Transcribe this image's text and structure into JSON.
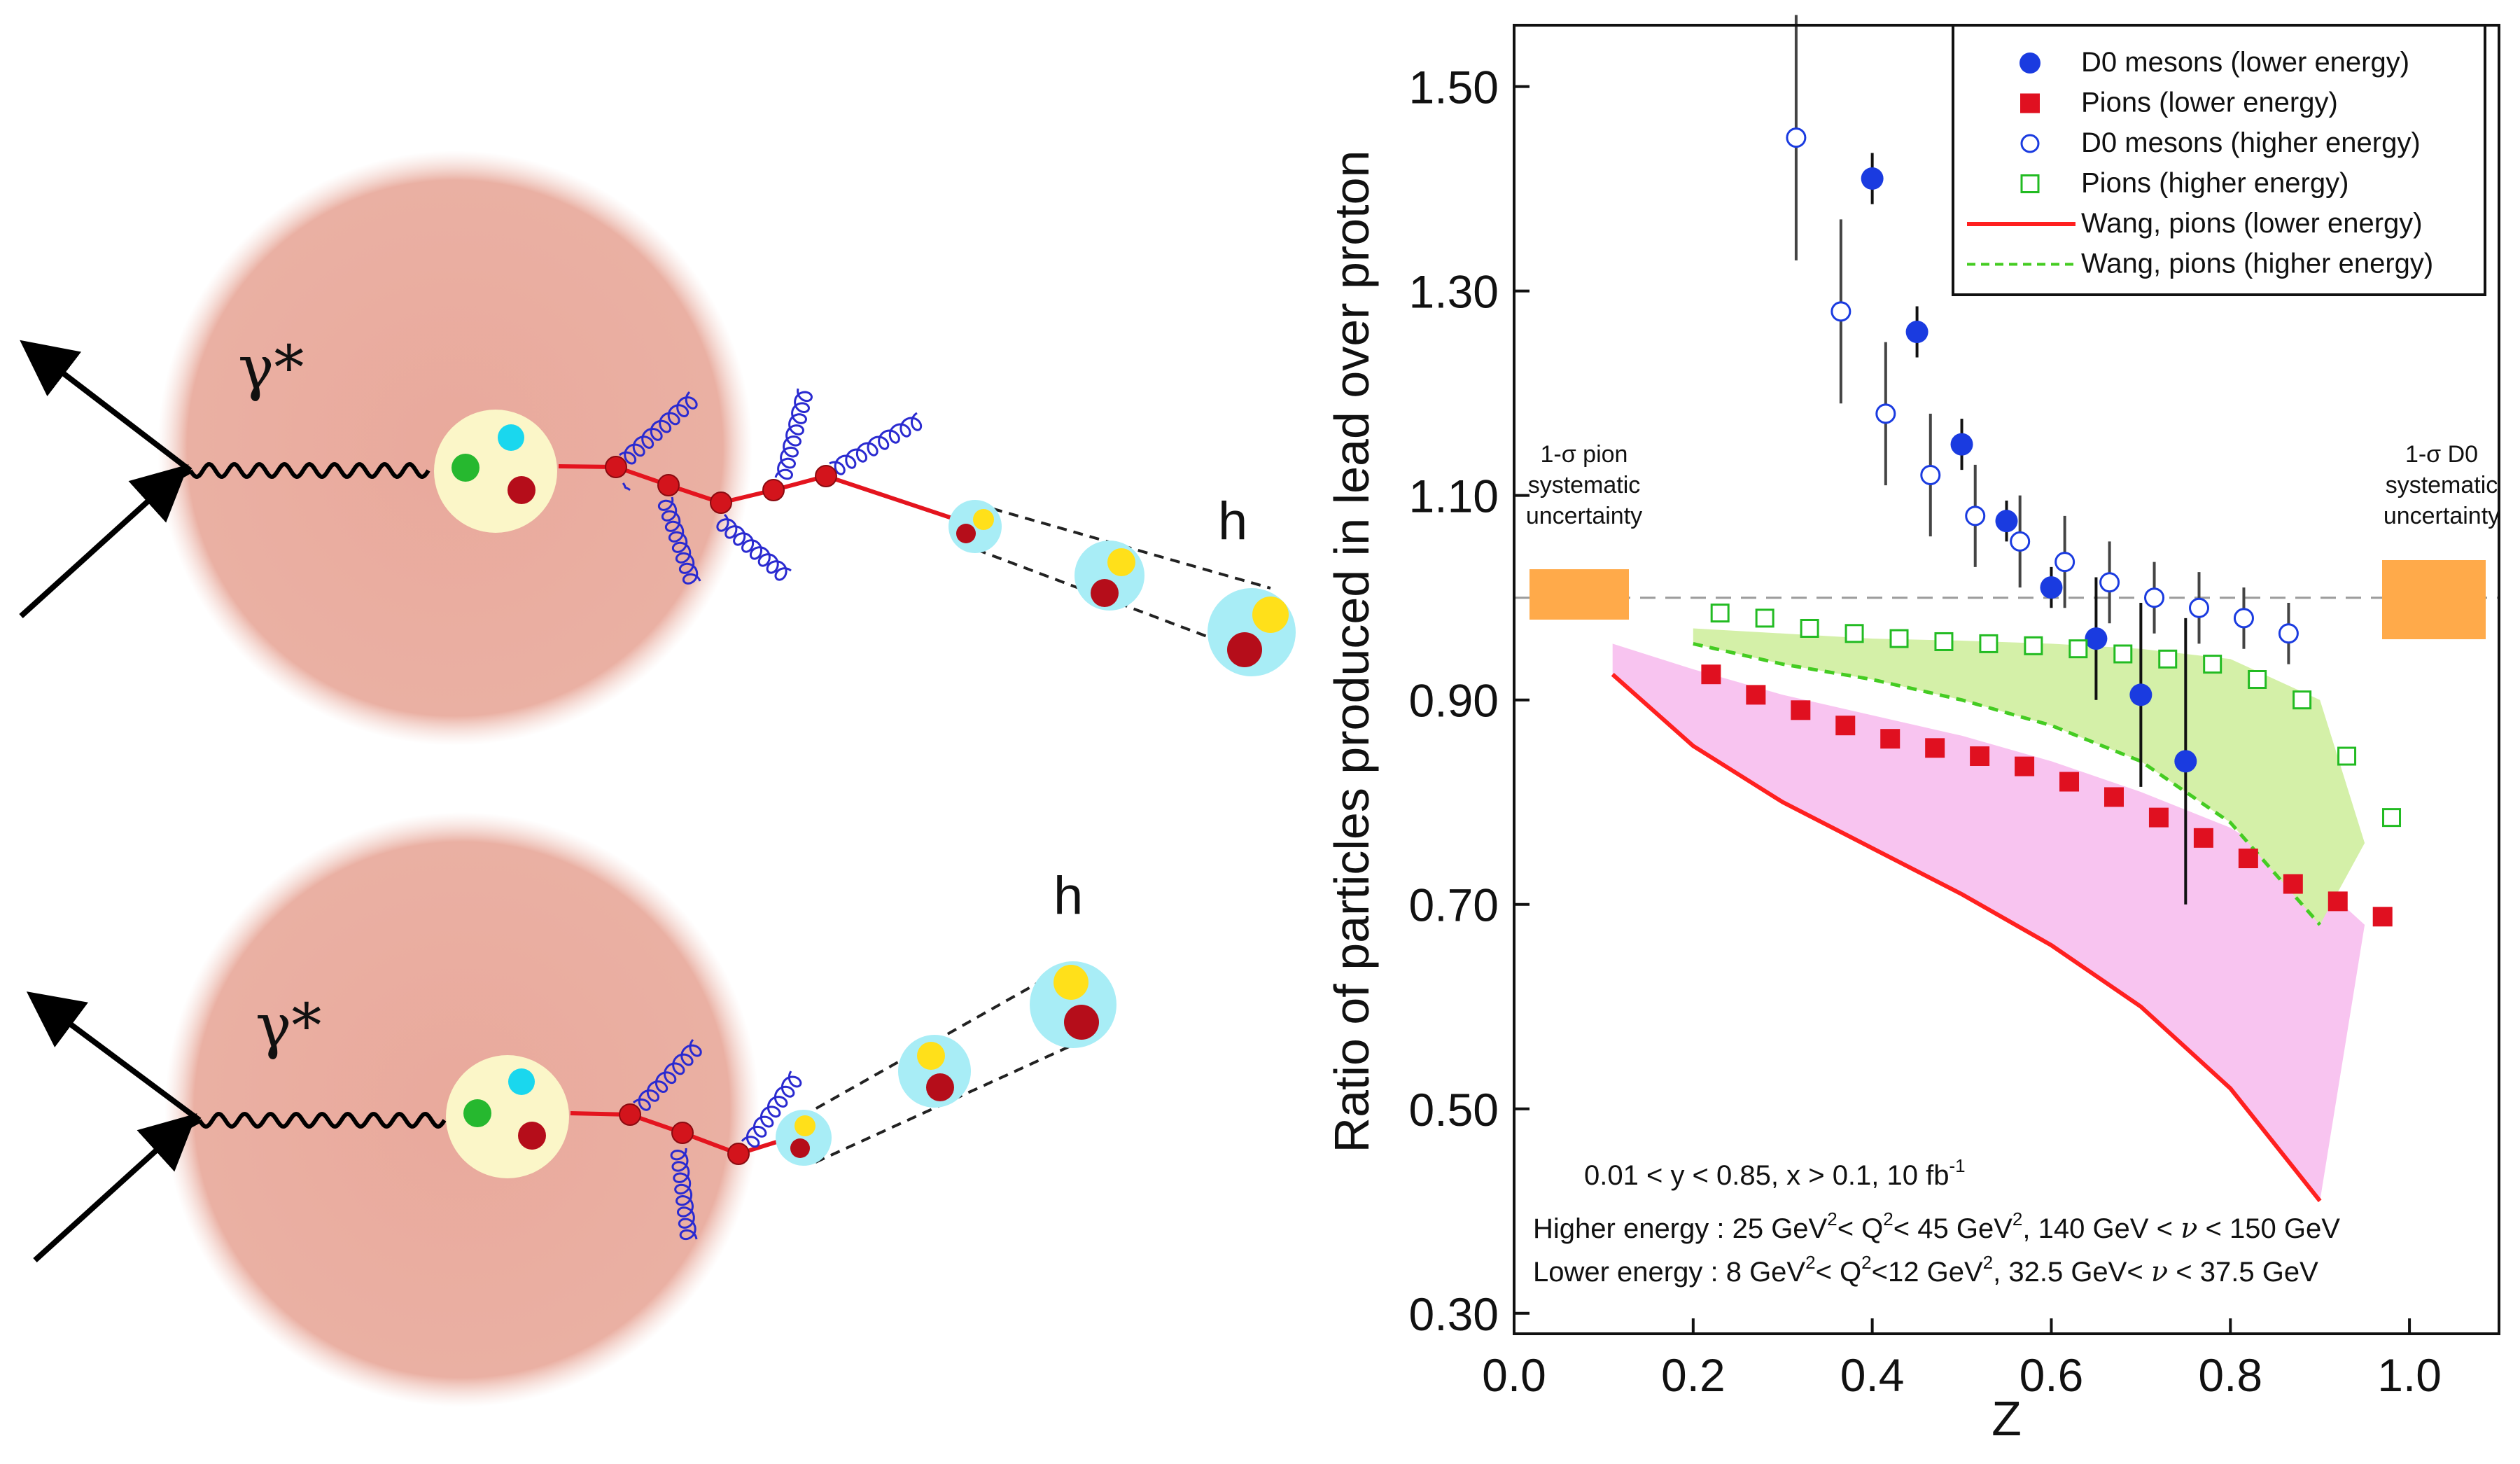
{
  "diagram": {
    "photon_label": "γ*",
    "hadron_label": "h"
  },
  "chart_data": {
    "type": "scatter",
    "xlabel": "Z",
    "ylabel": "Ratio of particles produced in lead over proton",
    "xlim": [
      0.0,
      1.1
    ],
    "ylim": [
      0.28,
      1.56
    ],
    "xticks": [
      "0.0",
      "0.2",
      "0.4",
      "0.6",
      "0.8",
      "1.0"
    ],
    "yticks": [
      "0.30",
      "0.50",
      "0.70",
      "0.90",
      "1.10",
      "1.30",
      "1.50"
    ],
    "reference_line": 1.0,
    "series": [
      {
        "name": "D0 mesons (lower energy)",
        "color": "#1a3be0",
        "marker": "filled-circle",
        "x": [
          0.4,
          0.45,
          0.5,
          0.55,
          0.6,
          0.65,
          0.7,
          0.75
        ],
        "y": [
          1.41,
          1.26,
          1.15,
          1.075,
          1.01,
          0.96,
          0.905,
          0.84
        ],
        "err": [
          0.025,
          0.025,
          0.025,
          0.02,
          0.02,
          0.06,
          0.09,
          0.14
        ]
      },
      {
        "name": "Pions (lower energy)",
        "color": "#e01020",
        "marker": "filled-square",
        "x": [
          0.22,
          0.27,
          0.32,
          0.37,
          0.42,
          0.47,
          0.52,
          0.57,
          0.62,
          0.67,
          0.72,
          0.77,
          0.82,
          0.87,
          0.92,
          0.97
        ],
        "y": [
          0.925,
          0.905,
          0.89,
          0.875,
          0.862,
          0.853,
          0.845,
          0.835,
          0.82,
          0.805,
          0.785,
          0.765,
          0.745,
          0.72,
          0.703,
          0.688
        ]
      },
      {
        "name": "D0 mesons (higher energy)",
        "color": "#1a3be0",
        "marker": "open-circle",
        "x": [
          0.315,
          0.365,
          0.415,
          0.465,
          0.515,
          0.565,
          0.615,
          0.665,
          0.715,
          0.765,
          0.815,
          0.865
        ],
        "y": [
          1.45,
          1.28,
          1.18,
          1.12,
          1.08,
          1.055,
          1.035,
          1.015,
          1.0,
          0.99,
          0.98,
          0.965
        ],
        "err": [
          0.12,
          0.09,
          0.07,
          0.06,
          0.05,
          0.045,
          0.045,
          0.04,
          0.035,
          0.035,
          0.03,
          0.03
        ]
      },
      {
        "name": "Pions (higher energy)",
        "color": "#22bb22",
        "marker": "open-square",
        "x": [
          0.23,
          0.28,
          0.33,
          0.38,
          0.43,
          0.48,
          0.53,
          0.58,
          0.63,
          0.68,
          0.73,
          0.78,
          0.83,
          0.88,
          0.93,
          0.98
        ],
        "y": [
          0.985,
          0.98,
          0.97,
          0.965,
          0.96,
          0.957,
          0.955,
          0.953,
          0.95,
          0.945,
          0.94,
          0.935,
          0.92,
          0.9,
          0.845,
          0.785
        ]
      },
      {
        "name": "Wang, pions (lower energy)",
        "color": "#ff2020",
        "marker": "solid-line",
        "x": [
          0.11,
          0.2,
          0.3,
          0.4,
          0.5,
          0.6,
          0.7,
          0.8,
          0.9
        ],
        "y": [
          0.925,
          0.855,
          0.8,
          0.755,
          0.71,
          0.66,
          0.6,
          0.52,
          0.41
        ]
      },
      {
        "name": "Wang, pions (higher energy)",
        "color": "#44cc22",
        "marker": "dashed-line",
        "x": [
          0.2,
          0.3,
          0.4,
          0.5,
          0.6,
          0.7,
          0.8,
          0.9
        ],
        "y": [
          0.955,
          0.935,
          0.92,
          0.9,
          0.875,
          0.84,
          0.78,
          0.68
        ]
      }
    ],
    "bands": [
      {
        "name": "Wang, pions (lower energy) band",
        "color": "#f8c4f0",
        "x": [
          0.11,
          0.2,
          0.3,
          0.4,
          0.5,
          0.6,
          0.7,
          0.8,
          0.9,
          0.95
        ],
        "lower": [
          0.925,
          0.855,
          0.8,
          0.755,
          0.71,
          0.66,
          0.6,
          0.52,
          0.41,
          0.68
        ],
        "upper": [
          0.955,
          0.93,
          0.905,
          0.885,
          0.865,
          0.84,
          0.81,
          0.775,
          0.72,
          0.68
        ]
      },
      {
        "name": "Wang, pions (higher energy) band",
        "color": "#d4f0a8",
        "x": [
          0.2,
          0.3,
          0.4,
          0.5,
          0.6,
          0.7,
          0.8,
          0.9,
          0.95
        ],
        "lower": [
          0.955,
          0.935,
          0.92,
          0.9,
          0.875,
          0.84,
          0.78,
          0.68,
          0.76
        ],
        "upper": [
          0.97,
          0.965,
          0.96,
          0.958,
          0.955,
          0.95,
          0.94,
          0.9,
          0.76
        ]
      }
    ],
    "systematic_boxes": [
      {
        "label_lines": [
          "1-σ pion",
          "systematic",
          "uncertainty"
        ],
        "side": "left",
        "color": "#ffaa4a"
      },
      {
        "label_lines": [
          "1-σ D0",
          "systematic",
          "uncertainty"
        ],
        "side": "right",
        "color": "#ffaa4a"
      }
    ],
    "legend_position": "top-right",
    "annotations": [
      "0.01 < y < 0.85, x > 0.1, 10 fb",
      "Higher energy : 25 GeV",
      "Lower energy  : 8 GeV"
    ]
  },
  "annotation_text": {
    "cuts_superscript": "-1",
    "higher_q2": "< Q",
    "higher_q2_mid": "< 45 GeV",
    "higher_nu": ", 140 GeV < ",
    "higher_nu_end": " < 150 GeV",
    "lower_q2": "< Q",
    "lower_q2_mid": "<12 GeV",
    "lower_nu": ", 32.5 GeV< ",
    "lower_nu_end": " < 37.5 GeV",
    "sup2": "2",
    "nu": "ν"
  }
}
